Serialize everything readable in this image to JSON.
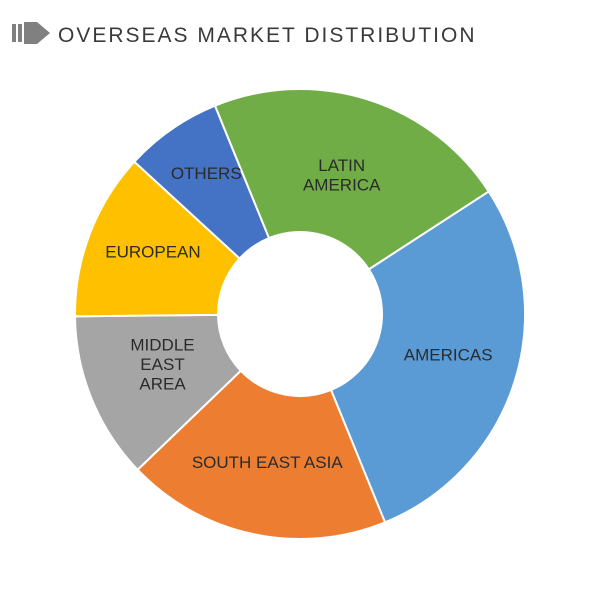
{
  "header": {
    "title": "OVERSEAS MARKET DISTRIBUTION",
    "icon_color": "#808080"
  },
  "chart": {
    "type": "donut",
    "outer_radius": 225,
    "inner_radius": 82,
    "start_angle_deg": -33,
    "background_color": "#ffffff",
    "label_fontsize": 17,
    "label_color": "#2b2b2b",
    "slices": [
      {
        "label": "AMERICAS",
        "value": 28,
        "color": "#5b9bd5",
        "label_lines": [
          "AMERICAS"
        ],
        "label_r": 0.69
      },
      {
        "label": "SOUTH EAST ASIA",
        "value": 19,
        "color": "#ed7d31",
        "label_lines": [
          "SOUTH EAST ASIA"
        ],
        "label_r": 0.7
      },
      {
        "label": "MIDDLE EAST AREA",
        "value": 12,
        "color": "#a5a5a5",
        "label_lines": [
          "MIDDLE",
          "EAST",
          "AREA"
        ],
        "label_r": 0.66
      },
      {
        "label": "EUROPEAN",
        "value": 12,
        "color": "#ffc000",
        "label_lines": [
          "EUROPEAN"
        ],
        "label_r": 0.7
      },
      {
        "label": "OTHERS",
        "value": 7,
        "color": "#4472c4",
        "label_lines": [
          "OTHERS"
        ],
        "label_r": 0.73
      },
      {
        "label": "LATIN AMERICA",
        "value": 22,
        "color": "#70ad47",
        "label_lines": [
          "LATIN",
          "AMERICA"
        ],
        "label_r": 0.62
      }
    ]
  }
}
